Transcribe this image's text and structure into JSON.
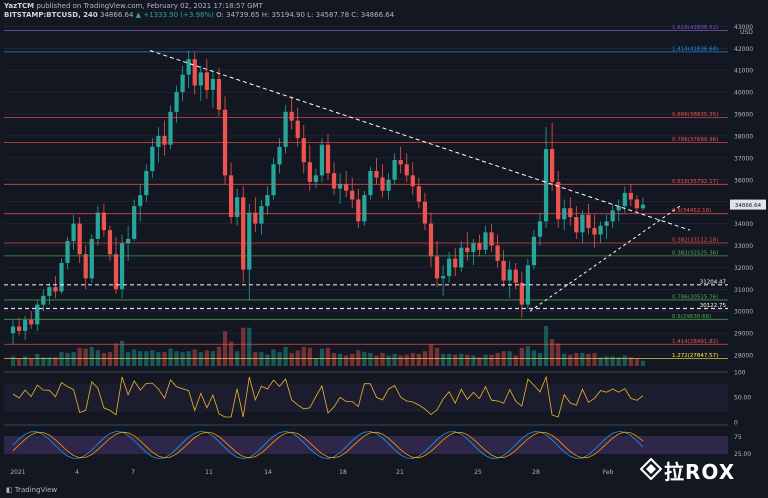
{
  "header": {
    "line1_user": "YazTCM",
    "line1_rest": " published on TradingView.com, February 02, 2021 17:18:57 GMT",
    "line2_symbol": "BITSTAMP:BTCUSD, 240",
    "line2_price": " 34866.64",
    "line2_change": " ▲ +1333.90 (+3.98%)",
    "line2_ohlc": " O: 34739.65  H: 35194.90  L: 34587.78  C: 34866.64"
  },
  "footer": {
    "logo_text": "TradingView"
  },
  "watermark": {
    "text": "拉ROX"
  },
  "colors": {
    "background": "#131722",
    "up": "#26a69a",
    "down": "#ef5350",
    "grid": "#2a2e39"
  },
  "chart_data": {
    "type": "candlestick",
    "symbol": "BITSTAMP:BTCUSD",
    "interval": "240",
    "currency_label": "USD",
    "ylim": [
      27500,
      43200
    ],
    "y_ticks": [
      28000,
      29000,
      30000,
      31000,
      32000,
      33000,
      34000,
      35000,
      36000,
      37000,
      38000,
      39000,
      40000,
      41000,
      42000,
      43000
    ],
    "x_tick_labels": [
      "2021",
      "4",
      "7",
      "11",
      "14",
      "18",
      "21",
      "25",
      "28",
      "Feb"
    ],
    "current_price": 34866.64,
    "price_levels": [
      {
        "label": "1.618(42808.52)",
        "value": 42808.52,
        "color": "#7e57c2"
      },
      {
        "label": "1.414(41836.64)",
        "value": 41836.64,
        "color": "#2196f3"
      },
      {
        "label": "0.886(38835.35)",
        "value": 38835.35,
        "color": "#ef5350"
      },
      {
        "label": "0.786(37699.96)",
        "value": 37699.96,
        "color": "#ef5350"
      },
      {
        "label": "0.618(35792.17)",
        "value": 35792.17,
        "color": "#ef5350"
      },
      {
        "label": "0.5(34452.18)",
        "value": 34452.18,
        "color": "#ef5350"
      },
      {
        "label": "0.382(33112.18)",
        "value": 33112.18,
        "color": "#ef5350"
      },
      {
        "label": "0.382(32525.36)",
        "value": 32525.36,
        "color": "#4caf50"
      },
      {
        "label": "31204.47",
        "value": 31204.47,
        "color": "#ffffff"
      },
      {
        "label": "0.786(30515.76)",
        "value": 30515.76,
        "color": "#4caf50"
      },
      {
        "label": "30122.75",
        "value": 30122.75,
        "color": "#ffffff"
      },
      {
        "label": "0.5(29630.68)",
        "value": 29630.68,
        "color": "#4caf50"
      },
      {
        "label": "1.414(28491.82)",
        "value": 28491.82,
        "color": "#ef5350"
      },
      {
        "label": "1.272(27847.57)",
        "value": 27847.57,
        "color": "#ffeb3b"
      }
    ],
    "candles_ohlc": [
      [
        29000,
        29600,
        28500,
        29300
      ],
      [
        29300,
        29700,
        28900,
        29100
      ],
      [
        29100,
        29800,
        28700,
        29600
      ],
      [
        29600,
        30000,
        29200,
        29400
      ],
      [
        29400,
        30500,
        29100,
        30300
      ],
      [
        30300,
        31000,
        30000,
        30700
      ],
      [
        30700,
        31300,
        30300,
        31100
      ],
      [
        31100,
        31600,
        30600,
        30900
      ],
      [
        30900,
        32400,
        30800,
        32200
      ],
      [
        32200,
        33400,
        31900,
        33200
      ],
      [
        33200,
        34400,
        32800,
        34000
      ],
      [
        34000,
        34300,
        32200,
        32600
      ],
      [
        32600,
        33000,
        31000,
        31500
      ],
      [
        31500,
        33500,
        31300,
        33300
      ],
      [
        33300,
        34800,
        33000,
        34500
      ],
      [
        34500,
        34900,
        33400,
        33700
      ],
      [
        33700,
        33900,
        32300,
        32600
      ],
      [
        32600,
        33400,
        30800,
        31000
      ],
      [
        31000,
        33500,
        30600,
        33100
      ],
      [
        33100,
        33900,
        32300,
        33300
      ],
      [
        33300,
        35100,
        33200,
        34800
      ],
      [
        34800,
        35800,
        34100,
        35300
      ],
      [
        35300,
        36700,
        35000,
        36400
      ],
      [
        36400,
        37900,
        36100,
        37500
      ],
      [
        37500,
        38400,
        36800,
        38000
      ],
      [
        38000,
        38700,
        37100,
        37600
      ],
      [
        37600,
        39400,
        37400,
        39100
      ],
      [
        39100,
        40300,
        38600,
        40000
      ],
      [
        40000,
        41200,
        39600,
        40800
      ],
      [
        40800,
        41900,
        40200,
        41500
      ],
      [
        41500,
        41800,
        39900,
        40300
      ],
      [
        40300,
        41200,
        39600,
        40900
      ],
      [
        40900,
        41500,
        39700,
        40100
      ],
      [
        40100,
        41000,
        39300,
        40600
      ],
      [
        40600,
        41100,
        38900,
        39200
      ],
      [
        39200,
        39800,
        35800,
        36200
      ],
      [
        36200,
        36800,
        34000,
        34300
      ],
      [
        34300,
        35600,
        33900,
        35200
      ],
      [
        35200,
        35700,
        31300,
        31900
      ],
      [
        31900,
        34900,
        30500,
        34500
      ],
      [
        34500,
        35200,
        33600,
        34000
      ],
      [
        34000,
        35100,
        33500,
        34800
      ],
      [
        34800,
        35700,
        34400,
        35300
      ],
      [
        35300,
        37000,
        35100,
        36700
      ],
      [
        36700,
        37900,
        36300,
        37500
      ],
      [
        37500,
        39400,
        37200,
        39100
      ],
      [
        39100,
        39800,
        38300,
        38700
      ],
      [
        38700,
        39300,
        37500,
        37900
      ],
      [
        37900,
        38500,
        36300,
        36800
      ],
      [
        36800,
        37600,
        35500,
        35900
      ],
      [
        35900,
        36500,
        35600,
        36200
      ],
      [
        36200,
        37900,
        35900,
        37600
      ],
      [
        37600,
        38100,
        36000,
        36300
      ],
      [
        36300,
        36800,
        35300,
        35600
      ],
      [
        35600,
        36300,
        34900,
        35800
      ],
      [
        35800,
        36400,
        35200,
        35500
      ],
      [
        35500,
        36100,
        34700,
        35100
      ],
      [
        35100,
        35600,
        33800,
        34100
      ],
      [
        34100,
        35500,
        33900,
        35300
      ],
      [
        35300,
        36600,
        35100,
        36400
      ],
      [
        36400,
        37000,
        35800,
        36100
      ],
      [
        36100,
        36700,
        35200,
        35500
      ],
      [
        35500,
        36300,
        35100,
        36000
      ],
      [
        36000,
        37200,
        35800,
        36900
      ],
      [
        36900,
        37500,
        36300,
        36700
      ],
      [
        36700,
        37200,
        35900,
        36200
      ],
      [
        36200,
        36800,
        35300,
        35700
      ],
      [
        35700,
        36100,
        34700,
        35000
      ],
      [
        35000,
        35400,
        33700,
        34000
      ],
      [
        34000,
        34500,
        32000,
        32500
      ],
      [
        32500,
        33200,
        31100,
        31500
      ],
      [
        31500,
        32100,
        30700,
        31600
      ],
      [
        31600,
        32700,
        31300,
        32400
      ],
      [
        32400,
        32900,
        31600,
        32000
      ],
      [
        32000,
        33200,
        31800,
        32900
      ],
      [
        32900,
        33600,
        32300,
        32700
      ],
      [
        32700,
        33300,
        32100,
        33100
      ],
      [
        33100,
        33500,
        32500,
        32800
      ],
      [
        32800,
        33900,
        32600,
        33600
      ],
      [
        33600,
        34000,
        32700,
        33000
      ],
      [
        33000,
        33500,
        32000,
        32300
      ],
      [
        32300,
        32800,
        31100,
        31400
      ],
      [
        31400,
        32300,
        30600,
        31900
      ],
      [
        31900,
        32200,
        31000,
        31300
      ],
      [
        31300,
        31800,
        29700,
        30300
      ],
      [
        30300,
        32400,
        30100,
        32100
      ],
      [
        32100,
        33700,
        31900,
        33400
      ],
      [
        33400,
        34500,
        33000,
        34100
      ],
      [
        34100,
        38400,
        33800,
        37400
      ],
      [
        37400,
        38600,
        35500,
        35900
      ],
      [
        35900,
        36400,
        33800,
        34200
      ],
      [
        34200,
        35100,
        33700,
        34700
      ],
      [
        34700,
        35200,
        33900,
        34300
      ],
      [
        34300,
        34800,
        33300,
        33600
      ],
      [
        33600,
        34600,
        33100,
        34400
      ],
      [
        34400,
        34900,
        33500,
        33800
      ],
      [
        33800,
        34400,
        32900,
        33500
      ],
      [
        33500,
        34100,
        33100,
        33900
      ],
      [
        33900,
        34400,
        33300,
        34100
      ],
      [
        34100,
        34900,
        33800,
        34600
      ],
      [
        34600,
        35100,
        34100,
        34800
      ],
      [
        34800,
        35700,
        34500,
        35400
      ],
      [
        35400,
        35800,
        34800,
        35100
      ],
      [
        35100,
        35300,
        34500,
        34700
      ],
      [
        34700,
        35200,
        34600,
        34866
      ]
    ],
    "indicators": [
      {
        "name": "RSI",
        "ylim": [
          0,
          100
        ],
        "ticks": [
          100,
          50.0,
          0
        ]
      },
      {
        "name": "Stoch RSI",
        "ylim": [
          0,
          100
        ],
        "ticks": [
          75,
          25.0
        ]
      }
    ]
  }
}
